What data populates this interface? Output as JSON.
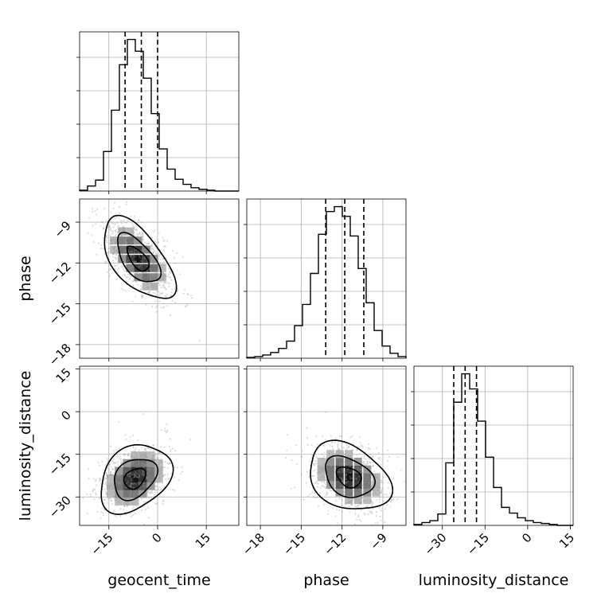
{
  "chart_data": {
    "type": "corner",
    "parameters": [
      "geocent_time",
      "phase",
      "luminosity_distance"
    ],
    "axes": {
      "geocent_time": {
        "range": [
          -24,
          25
        ],
        "ticks": [
          -15,
          0,
          15
        ],
        "tick_labels": [
          "−15",
          "0",
          "15"
        ]
      },
      "phase": {
        "range": [
          -19,
          -7.3
        ],
        "ticks": [
          -18,
          -15,
          -12,
          -9
        ],
        "tick_labels": [
          "−18",
          "−15",
          "−12",
          "−9"
        ]
      },
      "luminosity_distance": {
        "range": [
          -40,
          16
        ],
        "ticks": [
          -30,
          -15,
          0,
          15
        ],
        "tick_labels": [
          "−30",
          "−15",
          "0",
          "15"
        ]
      }
    },
    "histograms": {
      "geocent_time": {
        "bin_edges": [
          -24,
          -21.55,
          -19.1,
          -16.65,
          -14.2,
          -11.75,
          -9.3,
          -6.85,
          -4.4,
          -1.95,
          0.5,
          2.95,
          5.4,
          7.85,
          10.3,
          12.75,
          15.2,
          17.65,
          20.1,
          22.55,
          25
        ],
        "counts": [
          0.5,
          3.0,
          6.5,
          23.5,
          48.0,
          75.0,
          90.0,
          83.0,
          67.0,
          46.0,
          25.0,
          13.0,
          7.0,
          4.0,
          2.0,
          1.0,
          0.5,
          0.0,
          0.0,
          0.0
        ],
        "quantiles": [
          -10.0,
          -5.0,
          0.0
        ]
      },
      "phase": {
        "bin_edges": [
          -19.0,
          -18.415,
          -17.83,
          -17.245,
          -16.66,
          -16.075,
          -15.49,
          -14.905,
          -14.32,
          -13.735,
          -13.15,
          -12.565,
          -11.98,
          -11.395,
          -10.81,
          -10.225,
          -9.64,
          -9.055,
          -8.47,
          -7.885,
          -7.3
        ],
        "counts": [
          0.5,
          1.0,
          2.0,
          3.5,
          6.0,
          10.5,
          20.0,
          33.0,
          52.0,
          76.0,
          90.0,
          93.0,
          87.0,
          75.0,
          55.0,
          34.0,
          17.0,
          7.5,
          3.0,
          1.0
        ],
        "quantiles": [
          -13.2,
          -11.8,
          -10.4
        ]
      },
      "luminosity_distance": {
        "bin_edges": [
          -40.0,
          -37.2,
          -34.4,
          -31.6,
          -28.8,
          -26.0,
          -23.2,
          -20.4,
          -17.6,
          -14.8,
          -12.0,
          -9.2,
          -6.4,
          -3.6,
          -0.8,
          2.0,
          4.8,
          7.6,
          10.4,
          13.2,
          16.0
        ],
        "counts": [
          0.5,
          1.5,
          2.5,
          6.0,
          33.0,
          65.0,
          80.0,
          72.0,
          55.0,
          36.0,
          20.0,
          9.5,
          6.5,
          4.0,
          2.5,
          1.5,
          1.0,
          0.5,
          0.0,
          0.0
        ],
        "quantiles": [
          -26.0,
          -22.0,
          -18.0
        ]
      }
    },
    "scatter_pairs": [
      {
        "x": "geocent_time",
        "y": "phase",
        "mean": [
          -6.0,
          -11.7
        ],
        "sd": [
          5.5,
          1.5
        ],
        "rho": -0.6
      },
      {
        "x": "geocent_time",
        "y": "luminosity_distance",
        "mean": [
          -7.0,
          -23.5
        ],
        "sd": [
          5.5,
          6.0
        ],
        "rho": 0.3
      },
      {
        "x": "phase",
        "y": "luminosity_distance",
        "mean": [
          -11.5,
          -23.0
        ],
        "sd": [
          1.5,
          6.0
        ],
        "rho": -0.3
      }
    ],
    "grid": true
  }
}
